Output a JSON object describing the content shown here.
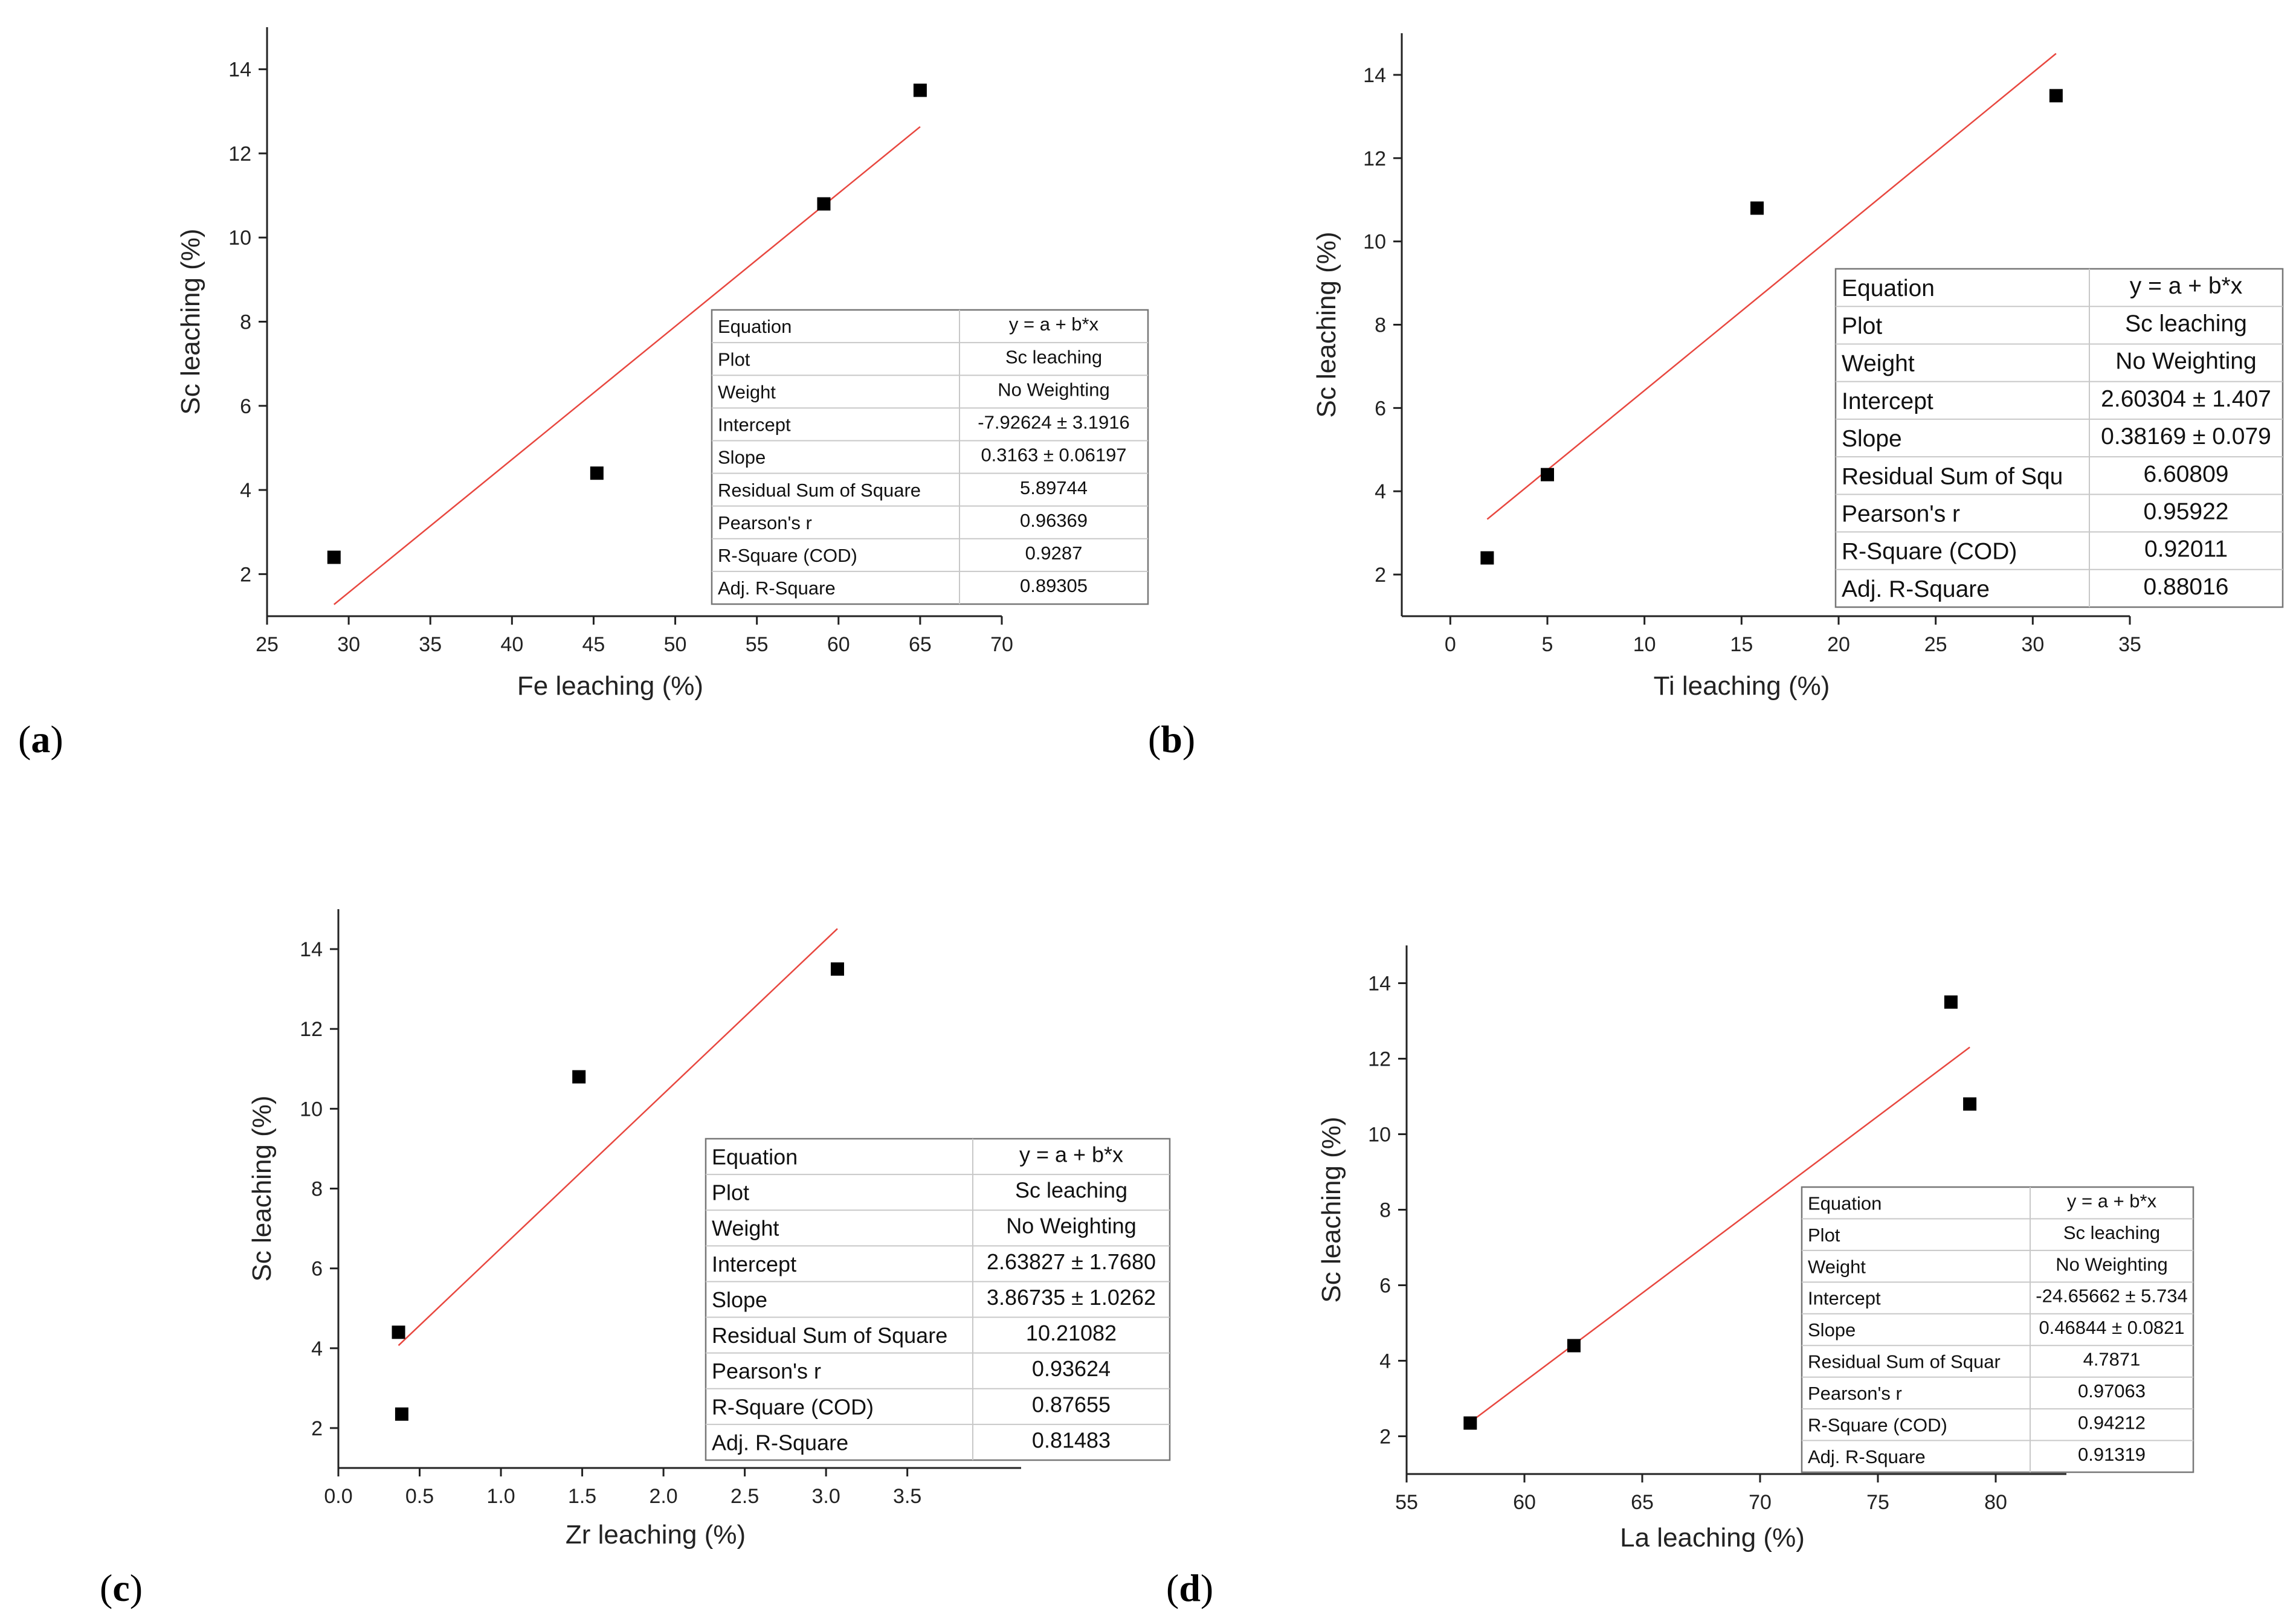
{
  "chart_data": [
    {
      "type": "scatter",
      "panel_label": "a",
      "xlabel": "Fe leaching (%)",
      "ylabel": "Sc leaching (%)",
      "xlim": [
        25,
        70
      ],
      "ylim": [
        1,
        15
      ],
      "xticks": [
        25,
        30,
        35,
        40,
        45,
        50,
        55,
        60,
        65,
        70
      ],
      "yticks": [
        2,
        4,
        6,
        8,
        10,
        12,
        14
      ],
      "points": [
        [
          29.1,
          2.4
        ],
        [
          45.2,
          4.4
        ],
        [
          59.1,
          10.8
        ],
        [
          65.0,
          13.5
        ]
      ],
      "fit": {
        "intercept": -7.92624,
        "slope": 0.3163,
        "x_range": [
          29.1,
          65.0
        ],
        "color": "#e8473f"
      },
      "stats": [
        [
          "Equation",
          "y = a + b*x"
        ],
        [
          "Plot",
          "Sc leaching"
        ],
        [
          "Weight",
          "No Weighting"
        ],
        [
          "Intercept",
          "-7.92624 ± 3.1916"
        ],
        [
          "Slope",
          "0.3163 ± 0.06197"
        ],
        [
          "Residual Sum of Square",
          "5.89744"
        ],
        [
          "Pearson's r",
          "0.96369"
        ],
        [
          "R-Square (COD)",
          "0.9287"
        ],
        [
          "Adj. R-Square",
          "0.89305"
        ]
      ]
    },
    {
      "type": "scatter",
      "panel_label": "b",
      "xlabel": "Ti leaching (%)",
      "ylabel": "Sc leaching (%)",
      "xlim": [
        -2.5,
        35
      ],
      "ylim": [
        1,
        15
      ],
      "xticks": [
        0,
        5,
        10,
        15,
        20,
        25,
        30,
        35
      ],
      "yticks": [
        2,
        4,
        6,
        8,
        10,
        12,
        14
      ],
      "points": [
        [
          1.9,
          2.4
        ],
        [
          5.0,
          4.4
        ],
        [
          15.8,
          10.8
        ],
        [
          31.2,
          13.5
        ]
      ],
      "fit": {
        "intercept": 2.60304,
        "slope": 0.38169,
        "x_range": [
          1.9,
          31.2
        ],
        "color": "#e8473f"
      },
      "stats": [
        [
          "Equation",
          "y = a + b*x"
        ],
        [
          "Plot",
          "Sc leaching"
        ],
        [
          "Weight",
          "No Weighting"
        ],
        [
          "Intercept",
          "2.60304 ± 1.407"
        ],
        [
          "Slope",
          "0.38169 ± 0.079"
        ],
        [
          "Residual Sum of Squ",
          "6.60809"
        ],
        [
          "Pearson's r",
          "0.95922"
        ],
        [
          "R-Square (COD)",
          "0.92011"
        ],
        [
          "Adj. R-Square",
          "0.88016"
        ]
      ]
    },
    {
      "type": "scatter",
      "panel_label": "c",
      "xlabel": "Zr leaching (%)",
      "ylabel": "Sc leaching (%)",
      "xlim": [
        0,
        4.2
      ],
      "ylim": [
        1,
        15
      ],
      "xticks": [
        0.0,
        0.5,
        1.0,
        1.5,
        2.0,
        2.5,
        3.0,
        3.5
      ],
      "yticks": [
        2,
        4,
        6,
        8,
        10,
        12,
        14
      ],
      "points": [
        [
          0.37,
          4.4
        ],
        [
          0.39,
          2.35
        ],
        [
          1.48,
          10.8
        ],
        [
          3.07,
          13.5
        ]
      ],
      "fit": {
        "intercept": 2.63827,
        "slope": 3.86735,
        "x_range": [
          0.37,
          3.07
        ],
        "color": "#e8473f"
      },
      "stats": [
        [
          "Equation",
          "y = a + b*x"
        ],
        [
          "Plot",
          "Sc leaching"
        ],
        [
          "Weight",
          "No Weighting"
        ],
        [
          "Intercept",
          "2.63827 ± 1.7680"
        ],
        [
          "Slope",
          "3.86735 ± 1.0262"
        ],
        [
          "Residual Sum of Square",
          "10.21082"
        ],
        [
          "Pearson's r",
          "0.93624"
        ],
        [
          "R-Square (COD)",
          "0.87655"
        ],
        [
          "Adj. R-Square",
          "0.81483"
        ]
      ]
    },
    {
      "type": "scatter",
      "panel_label": "d",
      "xlabel": "La leaching (%)",
      "ylabel": "Sc leaching (%)",
      "xlim": [
        55,
        83
      ],
      "ylim": [
        1,
        15
      ],
      "xticks": [
        55,
        60,
        65,
        70,
        75,
        80
      ],
      "yticks": [
        2,
        4,
        6,
        8,
        10,
        12,
        14
      ],
      "points": [
        [
          57.7,
          2.35
        ],
        [
          62.1,
          4.4
        ],
        [
          78.1,
          13.5
        ],
        [
          78.9,
          10.8
        ]
      ],
      "fit": {
        "intercept": -24.65662,
        "slope": 0.46844,
        "x_range": [
          57.7,
          78.9
        ],
        "color": "#e8473f"
      },
      "stats": [
        [
          "Equation",
          "y = a + b*x"
        ],
        [
          "Plot",
          "Sc leaching"
        ],
        [
          "Weight",
          "No Weighting"
        ],
        [
          "Intercept",
          "-24.65662 ± 5.734"
        ],
        [
          "Slope",
          "0.46844 ± 0.0821"
        ],
        [
          "Residual Sum of Squar",
          "4.7871"
        ],
        [
          "Pearson's r",
          "0.97063"
        ],
        [
          "R-Square (COD)",
          "0.94212"
        ],
        [
          "Adj. R-Square",
          "0.91319"
        ]
      ]
    }
  ]
}
